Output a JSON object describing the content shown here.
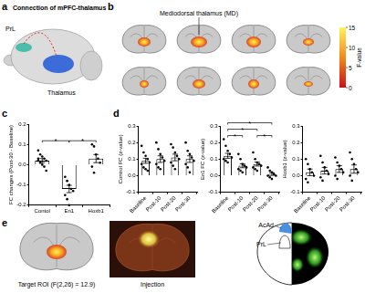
{
  "panels": {
    "a": {
      "label": "a",
      "title": "Connection of mPFC-thalamus",
      "regions": [
        "PrL",
        "Thalamus"
      ]
    },
    "b": {
      "label": "b",
      "annotation": "Mediodorsal thalamus (MD)",
      "colorbar": {
        "label": "F-value",
        "range": [
          0,
          15
        ],
        "ticks": [
          0,
          5,
          10,
          15
        ]
      }
    },
    "c": {
      "label": "c"
    },
    "d": {
      "label": "d"
    },
    "e": {
      "label": "e",
      "roi_label": "Target ROI (F(2,26) = 12.9)",
      "injection_label": "Injection",
      "regions": [
        "AcAd",
        "PrL"
      ]
    }
  },
  "chart_data": [
    {
      "type": "bar",
      "ylabel": "FC changes (Post-30 - Baseline)",
      "categories": [
        "Contol",
        "En1",
        "Hoxb1"
      ],
      "values": [
        0.02,
        -0.12,
        0.03
      ],
      "errors": [
        0.01,
        0.018,
        0.02
      ],
      "points": [
        [
          0.07,
          0.05,
          0.04,
          0.03,
          0.02,
          0.02,
          0.01,
          0.0,
          -0.01,
          -0.03,
          0.03
        ],
        [
          -0.06,
          -0.08,
          -0.1,
          -0.12,
          -0.13,
          -0.15,
          -0.17,
          -0.2
        ],
        [
          0.1,
          0.09,
          0.05,
          0.03,
          0.01,
          -0.01,
          -0.04
        ]
      ],
      "significance": [
        {
          "from": 0,
          "to": 1,
          "label": "*"
        },
        {
          "from": 1,
          "to": 2,
          "label": "*"
        }
      ],
      "color": "#ffffff",
      "ylim": [
        -0.2,
        0.2
      ],
      "yticks": [
        -0.2,
        -0.1,
        {
          "value": 0,
          "label": "0.0"
        },
        0.1,
        0.2
      ],
      "grid": false
    },
    {
      "type": "bar",
      "ylabel": "Control FC (z-value)",
      "categories": [
        "Baseline",
        "Post-10",
        "Post-20",
        "Post-30"
      ],
      "values": [
        0.09,
        0.1,
        0.11,
        0.1
      ],
      "errors": [
        0.015,
        0.02,
        0.02,
        0.02
      ],
      "points": [
        [
          0.18,
          0.14,
          0.12,
          0.1,
          0.08,
          0.07,
          0.05,
          0.04,
          0.03
        ],
        [
          0.2,
          0.16,
          0.13,
          0.11,
          0.09,
          0.07,
          0.05,
          0.04
        ],
        [
          0.19,
          0.17,
          0.14,
          0.12,
          0.1,
          0.08,
          0.06,
          0.04
        ],
        [
          0.2,
          0.15,
          0.13,
          0.11,
          0.09,
          0.07,
          0.05,
          0.02
        ]
      ],
      "significance": [],
      "color": "#ffffff",
      "ylim": [
        -0.1,
        0.3
      ],
      "yticks": [
        -0.1,
        {
          "value": 0,
          "label": "0.0"
        },
        0.1,
        0.2,
        0.3
      ],
      "grid": false
    },
    {
      "type": "bar",
      "ylabel": "En1 FC (z-value)",
      "categories": [
        "Baseline",
        "Post-10",
        "Post-20",
        "Post-30"
      ],
      "values": [
        0.12,
        0.06,
        0.07,
        0.01
      ],
      "errors": [
        0.015,
        0.012,
        0.012,
        0.008
      ],
      "points": [
        [
          0.22,
          0.18,
          0.15,
          0.13,
          0.11,
          0.1,
          0.09,
          0.08
        ],
        [
          0.13,
          0.1,
          0.07,
          0.06,
          0.05,
          0.04,
          0.03,
          0.02
        ],
        [
          0.14,
          0.1,
          0.08,
          0.07,
          0.06,
          0.05,
          0.04,
          0.03
        ],
        [
          0.05,
          0.03,
          0.02,
          0.01,
          0.0,
          0.0,
          -0.01,
          -0.02
        ]
      ],
      "significance": [
        {
          "from": 0,
          "to": 1,
          "label": "*"
        },
        {
          "from": 0,
          "to": 2,
          "label": "*"
        },
        {
          "from": 0,
          "to": 3,
          "label": "*"
        },
        {
          "from": 2,
          "to": 3,
          "label": "*"
        }
      ],
      "color": "#ffffff",
      "ylim": [
        -0.1,
        0.3
      ],
      "yticks": [
        -0.1,
        {
          "value": 0,
          "label": "0.0"
        },
        0.1,
        0.2,
        0.3
      ],
      "grid": false
    },
    {
      "type": "bar",
      "ylabel": "Hoxb1 (z-value)",
      "categories": [
        "Baseline",
        "Post-10",
        "Post-20",
        "Post-30"
      ],
      "values": [
        0.02,
        0.03,
        0.04,
        0.04
      ],
      "errors": [
        0.02,
        0.02,
        0.02,
        0.025
      ],
      "points": [
        [
          0.1,
          0.07,
          0.04,
          0.02,
          0.0,
          -0.02,
          -0.04
        ],
        [
          0.12,
          0.08,
          0.05,
          0.03,
          0.01,
          -0.01,
          -0.03
        ],
        [
          0.11,
          0.08,
          0.06,
          0.04,
          0.02,
          0.0,
          -0.02
        ],
        [
          0.14,
          0.1,
          0.07,
          0.04,
          0.02,
          0.0,
          -0.03
        ]
      ],
      "significance": [],
      "color": "#ffffff",
      "ylim": [
        -0.1,
        0.3
      ],
      "yticks": [
        -0.1,
        {
          "value": 0,
          "label": "0.0"
        },
        0.1,
        0.2,
        0.3
      ],
      "grid": false
    }
  ]
}
